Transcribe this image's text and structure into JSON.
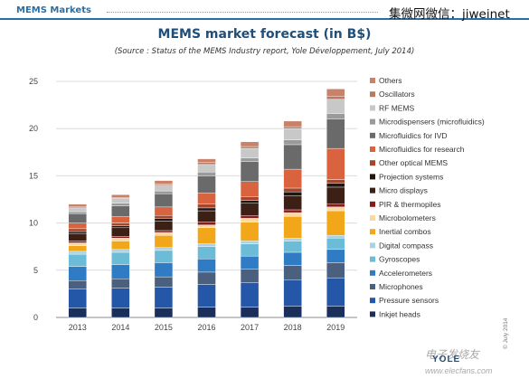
{
  "header": {
    "section_label": "MEMS Markets",
    "watermark": "集微网微信：jiweinet"
  },
  "chart_data": {
    "type": "bar",
    "stacked": true,
    "title": "MEMS market forecast (in B$)",
    "subtitle": "(Source : Status of the MEMS Industry report, Yole Développement, July 2014)",
    "categories": [
      "2013",
      "2014",
      "2015",
      "2016",
      "2017",
      "2018",
      "2019"
    ],
    "ylim": [
      0,
      25
    ],
    "yticks": [
      "0",
      "5",
      "10",
      "15",
      "20",
      "25"
    ],
    "grid": true,
    "legend_position": "right",
    "series": [
      {
        "name": "Inkjet heads",
        "color": "#1a2f5a",
        "values": [
          1.0,
          1.0,
          1.0,
          1.1,
          1.1,
          1.2,
          1.2
        ]
      },
      {
        "name": "Pressure sensors",
        "color": "#2457a8",
        "values": [
          2.0,
          2.1,
          2.2,
          2.4,
          2.6,
          2.8,
          3.0
        ]
      },
      {
        "name": "Microphones",
        "color": "#4b5f7e",
        "values": [
          0.9,
          1.0,
          1.1,
          1.3,
          1.4,
          1.5,
          1.6
        ]
      },
      {
        "name": "Accelerometers",
        "color": "#2f7bc4",
        "values": [
          1.5,
          1.5,
          1.5,
          1.4,
          1.4,
          1.4,
          1.4
        ]
      },
      {
        "name": "Gyroscopes",
        "color": "#6cbcd8",
        "values": [
          1.3,
          1.3,
          1.3,
          1.3,
          1.3,
          1.2,
          1.2
        ]
      },
      {
        "name": "Digital compass",
        "color": "#a9d3e2",
        "values": [
          0.3,
          0.3,
          0.3,
          0.3,
          0.3,
          0.3,
          0.3
        ]
      },
      {
        "name": "Inertial combos",
        "color": "#f2a71b",
        "values": [
          0.6,
          0.9,
          1.3,
          1.7,
          2.0,
          2.3,
          2.6
        ]
      },
      {
        "name": "Microbolometers",
        "color": "#f8d9a0",
        "values": [
          0.3,
          0.3,
          0.3,
          0.3,
          0.4,
          0.4,
          0.4
        ]
      },
      {
        "name": "PIR & thermopiles",
        "color": "#8b1a1a",
        "values": [
          0.2,
          0.2,
          0.2,
          0.3,
          0.3,
          0.3,
          0.3
        ]
      },
      {
        "name": "Micro displays",
        "color": "#3d2015",
        "values": [
          0.8,
          0.9,
          1.0,
          1.2,
          1.3,
          1.5,
          1.8
        ]
      },
      {
        "name": "Projection systems",
        "color": "#1f1612",
        "values": [
          0.2,
          0.2,
          0.3,
          0.3,
          0.3,
          0.4,
          0.4
        ]
      },
      {
        "name": "Other optical MEMS",
        "color": "#a8442a",
        "values": [
          0.3,
          0.3,
          0.3,
          0.4,
          0.4,
          0.4,
          0.4
        ]
      },
      {
        "name": "Microfluidics for research",
        "color": "#d9633f",
        "values": [
          0.6,
          0.7,
          0.9,
          1.2,
          1.6,
          2.0,
          3.3
        ]
      },
      {
        "name": "Microfluidics for IVD",
        "color": "#6a6a6a",
        "values": [
          1.0,
          1.1,
          1.4,
          1.8,
          2.1,
          2.6,
          3.1
        ]
      },
      {
        "name": "Microdispensers (microfluidics)",
        "color": "#9a9a9a",
        "values": [
          0.2,
          0.3,
          0.3,
          0.4,
          0.4,
          0.5,
          0.6
        ]
      },
      {
        "name": "RF MEMS",
        "color": "#c8c8c8",
        "values": [
          0.4,
          0.5,
          0.6,
          0.8,
          1.0,
          1.2,
          1.5
        ]
      },
      {
        "name": "Oscillators",
        "color": "#b97a63",
        "values": [
          0.1,
          0.1,
          0.1,
          0.2,
          0.2,
          0.2,
          0.3
        ]
      },
      {
        "name": "Others",
        "color": "#c9826a",
        "values": [
          0.3,
          0.3,
          0.4,
          0.4,
          0.5,
          0.6,
          0.8
        ]
      }
    ]
  },
  "footer": {
    "logo_text": "YOLE",
    "copyright": "© July 2014",
    "site_mark": "电子发烧友",
    "site_url": "www.elecfans.com"
  }
}
